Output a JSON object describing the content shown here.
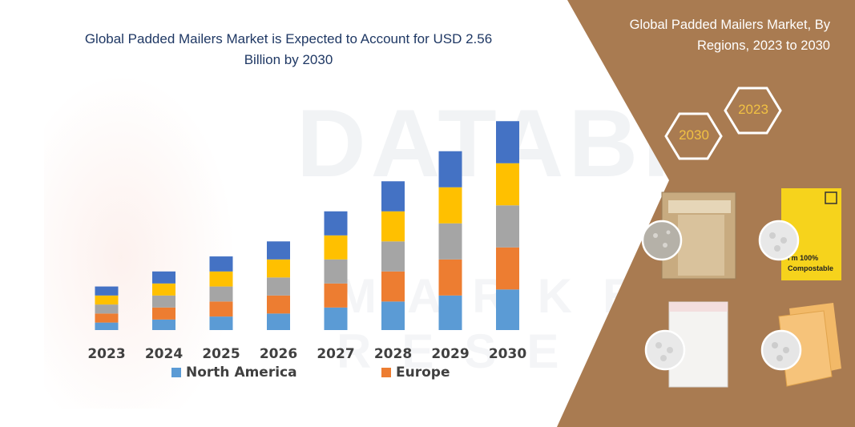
{
  "chart_data": {
    "type": "bar",
    "stacked": true,
    "title": "Global Padded Mailers Market is Expected to Account for USD 2.56 Billion by 2030",
    "categories": [
      "2023",
      "2024",
      "2025",
      "2026",
      "2027",
      "2028",
      "2029",
      "2030"
    ],
    "series": [
      {
        "name": "North America",
        "color": "#5b9bd5",
        "values": [
          10,
          14,
          18,
          22,
          30,
          38,
          46,
          54
        ]
      },
      {
        "name": "Europe",
        "color": "#ed7d31",
        "values": [
          12,
          16,
          20,
          24,
          32,
          40,
          48,
          56
        ]
      },
      {
        "name": "",
        "color": "#a5a5a5",
        "values": [
          12,
          16,
          20,
          24,
          32,
          40,
          48,
          56
        ]
      },
      {
        "name": "",
        "color": "#ffc000",
        "values": [
          12,
          16,
          20,
          24,
          32,
          40,
          48,
          56
        ]
      },
      {
        "name": "",
        "color": "#4472c4",
        "values": [
          12,
          16,
          20,
          24,
          32,
          40,
          48,
          56
        ]
      }
    ],
    "xlabel": "",
    "ylabel": "",
    "grid": false,
    "legend_position": "bottom"
  },
  "side_panel": {
    "title": "Global Padded Mailers Market, By Regions, 2023 to 2030",
    "hex_labels": [
      "2023",
      "2030"
    ],
    "background_color": "#a97b51",
    "accent_color": "#f1c143",
    "product_images": [
      "kraft-bubble-mailer",
      "yellow-compostable-mailer",
      "white-poly-bubble-mailer",
      "orange-padded-envelope"
    ],
    "compostable_text": "I'm 100% Compostable"
  },
  "watermark": {
    "text": "DATABRIDGE",
    "subtext": "MARKET RESEARCH"
  }
}
